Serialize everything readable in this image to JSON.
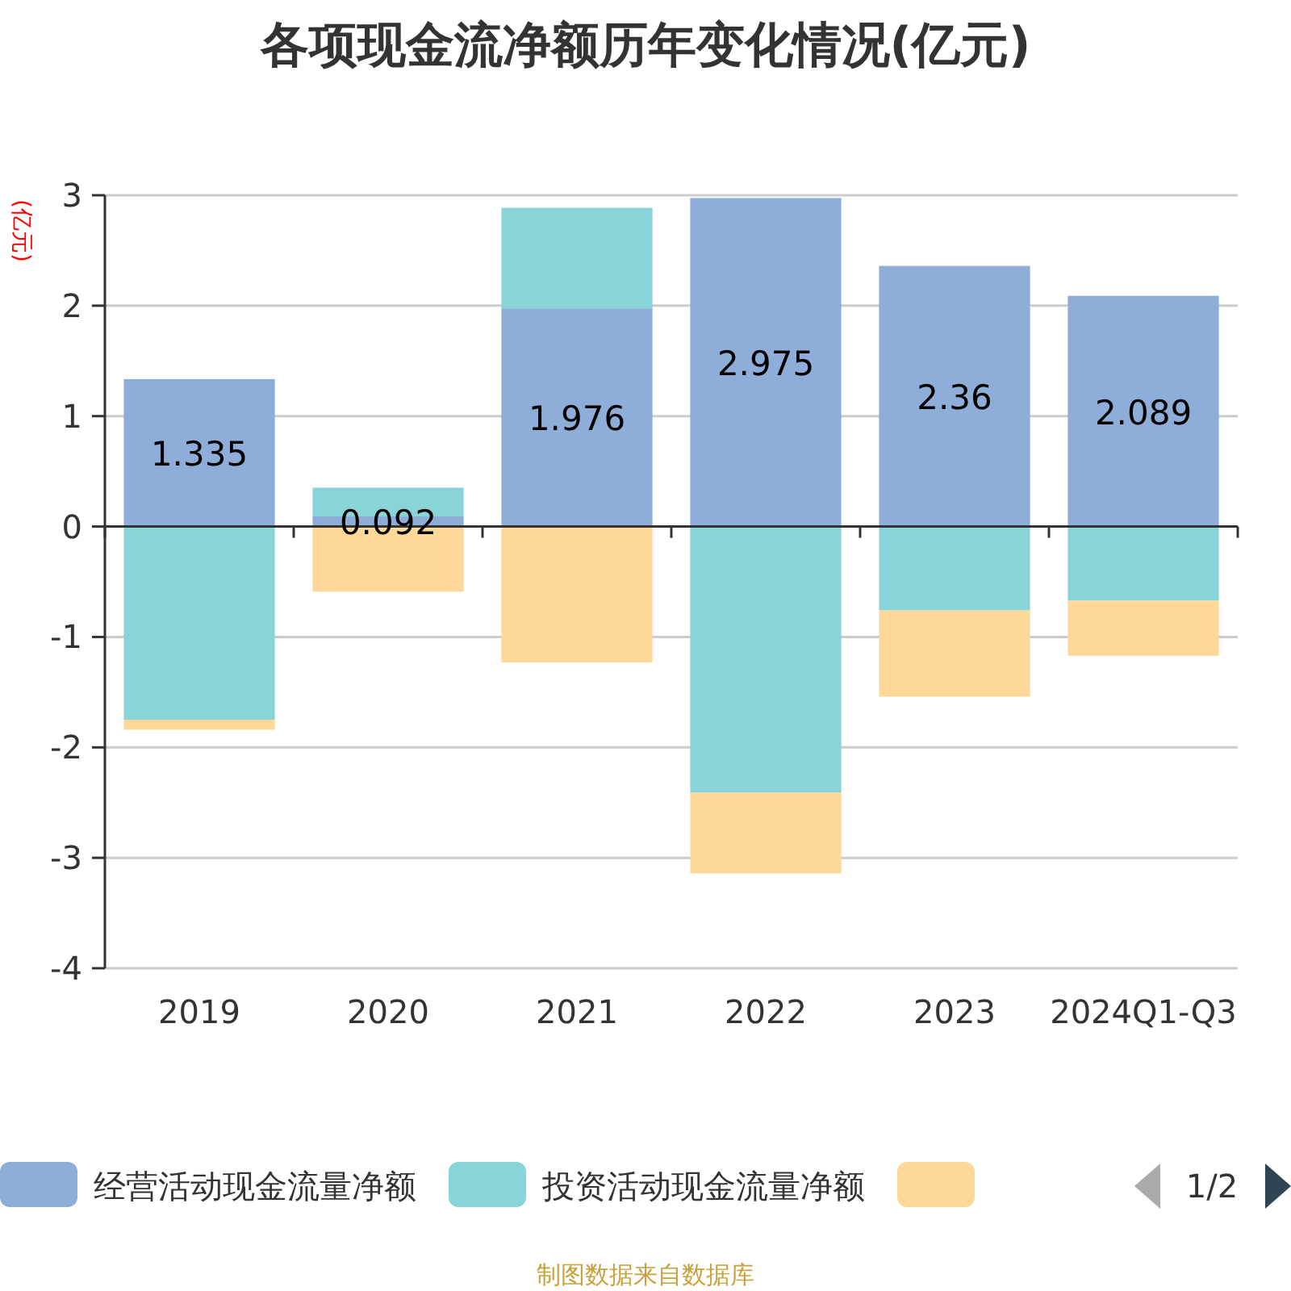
{
  "chart_data": {
    "type": "bar",
    "stacked": true,
    "title": "各项现金流净额历年变化情况(亿元)",
    "ylabel": "(亿元)",
    "categories": [
      "2019",
      "2020",
      "2021",
      "2022",
      "2023",
      "2024Q1-Q3"
    ],
    "series": [
      {
        "name": "经营活动现金流量净额",
        "color": "#8eadd9",
        "values": [
          1.335,
          0.092,
          1.976,
          2.975,
          2.36,
          2.089
        ],
        "value_labels": [
          "1.335",
          "0.092",
          "1.976",
          "2.975",
          "2.36",
          "2.089"
        ]
      },
      {
        "name": "投资活动现金流量净额",
        "color": "#88d4d8",
        "values": [
          -1.75,
          0.26,
          0.91,
          -2.41,
          -0.76,
          -0.67
        ]
      },
      {
        "color": "#fed899",
        "values": [
          -0.09,
          -0.59,
          -1.23,
          -0.73,
          -0.78,
          -0.5
        ]
      }
    ],
    "ylim": [
      -4,
      3
    ],
    "yticks": [
      -4,
      -3,
      -2,
      -1,
      0,
      1,
      2,
      3
    ],
    "grid": "y",
    "legend": "bottom",
    "annotations": [
      "1/2",
      "制图数据来自数据库"
    ]
  }
}
